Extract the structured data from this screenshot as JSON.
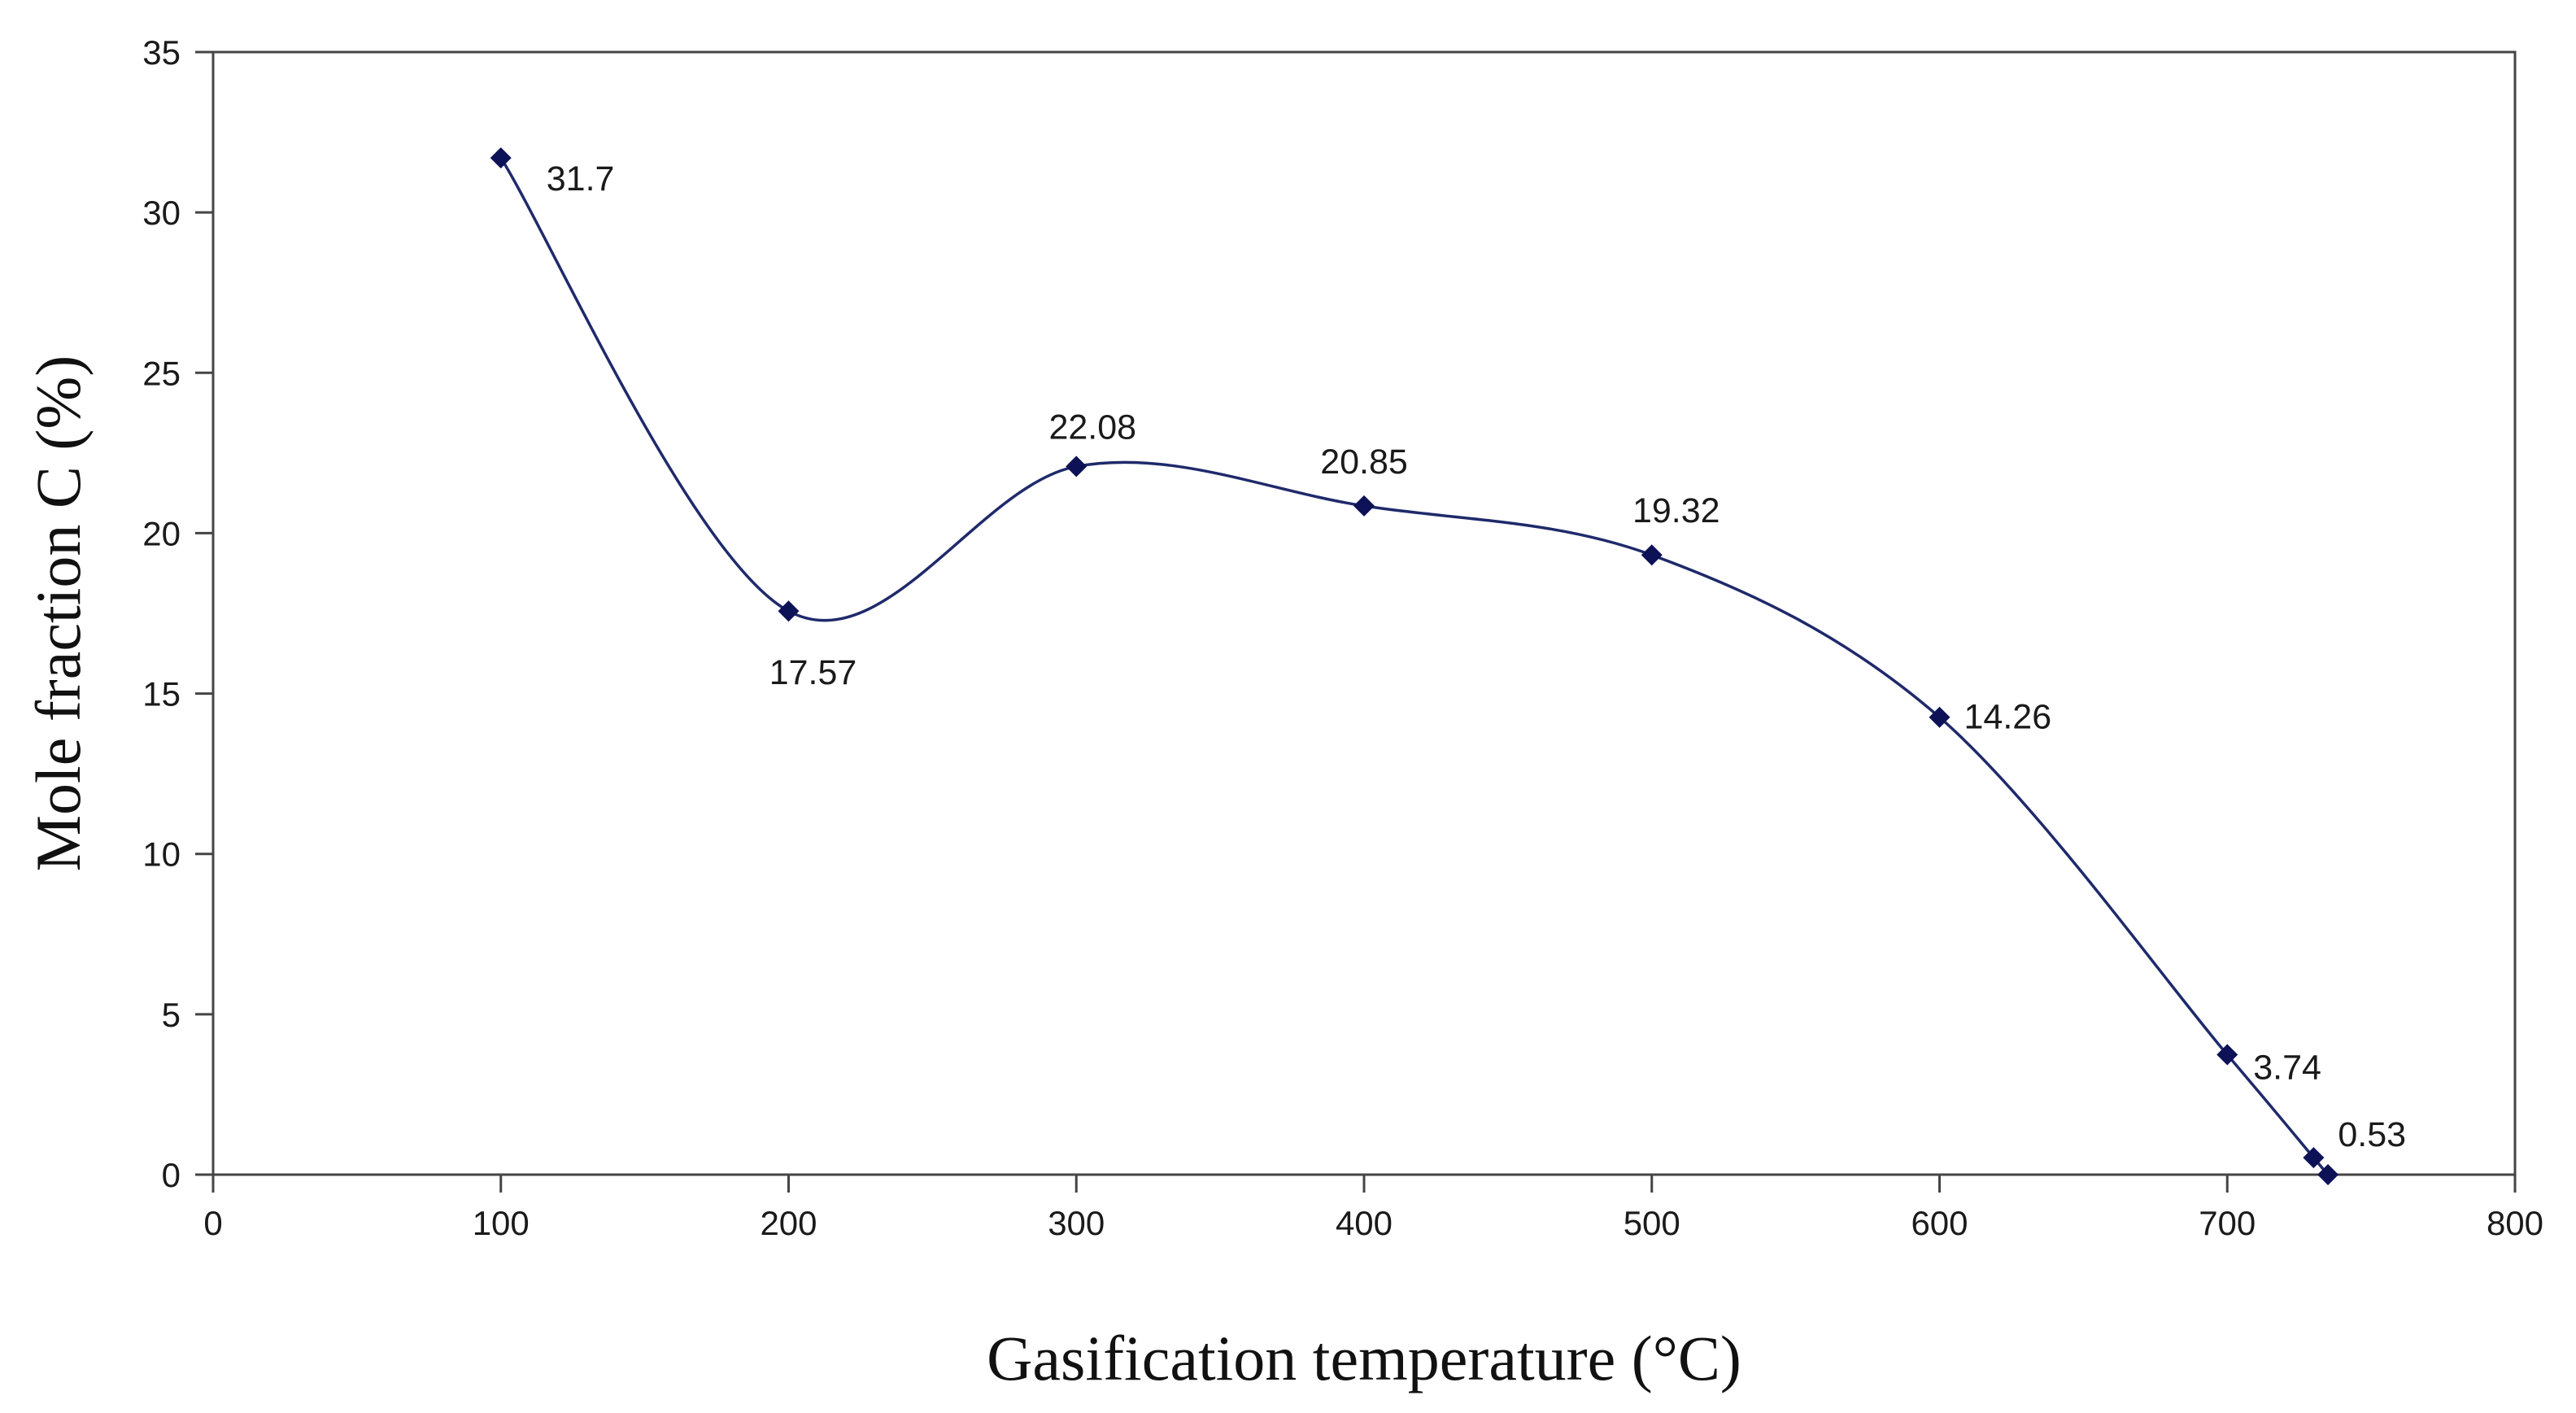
{
  "chart_data": {
    "type": "line",
    "xlabel": "Gasification temperature (°C)",
    "ylabel": "Mole fraction C (%)",
    "xlim": [
      0,
      800
    ],
    "ylim": [
      0,
      35
    ],
    "xticks": [
      0,
      100,
      200,
      300,
      400,
      500,
      600,
      700,
      800
    ],
    "yticks": [
      0,
      5,
      10,
      15,
      20,
      25,
      30,
      35
    ],
    "grid": false,
    "legend": "none",
    "smooth": true,
    "series": [
      {
        "name": "Mole fraction C",
        "color": "#1f2a6b",
        "marker_color": "#0d1257",
        "points": [
          {
            "x": 100,
            "y": 31.7,
            "label": "31.7"
          },
          {
            "x": 200,
            "y": 17.57,
            "label": "17.57"
          },
          {
            "x": 300,
            "y": 22.08,
            "label": "22.08"
          },
          {
            "x": 400,
            "y": 20.85,
            "label": "20.85"
          },
          {
            "x": 500,
            "y": 19.32,
            "label": "19.32"
          },
          {
            "x": 600,
            "y": 14.26,
            "label": "14.26"
          },
          {
            "x": 700,
            "y": 3.74,
            "label": "3.74"
          },
          {
            "x": 730,
            "y": 0.53,
            "label": "0.53"
          },
          {
            "x": 735,
            "y": 0,
            "label": ""
          }
        ]
      }
    ]
  }
}
